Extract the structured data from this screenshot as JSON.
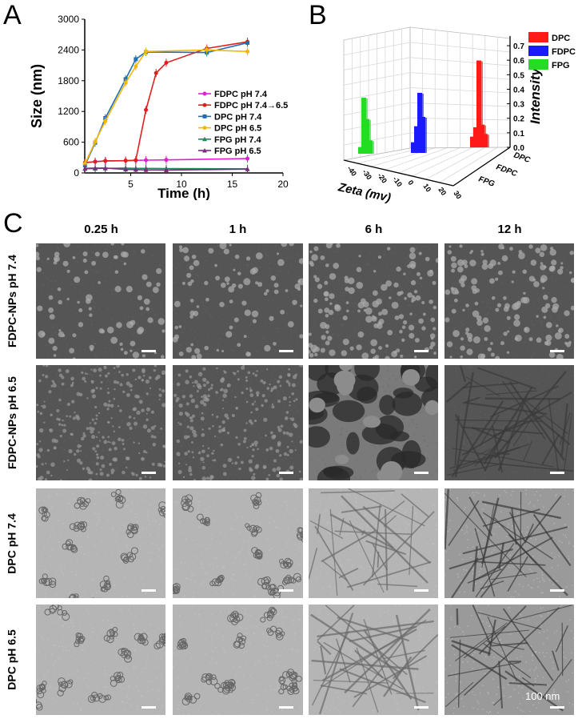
{
  "panels": {
    "a": {
      "letter": "A"
    },
    "b": {
      "letter": "B"
    },
    "c": {
      "letter": "C"
    }
  },
  "chart_data": [
    {
      "type": "line",
      "panel": "A",
      "xlabel": "Time (h)",
      "ylabel": "Size (nm)",
      "xlim": [
        0,
        20
      ],
      "ylim": [
        0,
        3000
      ],
      "xticks": [
        5,
        10,
        15,
        20
      ],
      "yticks": [
        0,
        600,
        1200,
        1800,
        2400,
        3000
      ],
      "legend_position": "right-middle",
      "series": [
        {
          "name": "FDPC pH 7.4",
          "color": "#e020d0",
          "marker": "circle",
          "x": [
            0.5,
            1.5,
            2.5,
            4.5,
            5.5,
            6.5,
            8.5,
            16.5
          ],
          "y": [
            200,
            220,
            235,
            240,
            245,
            250,
            255,
            280
          ]
        },
        {
          "name": "FDPC pH 7.4→6.5",
          "color": "#e02020",
          "marker": "circle",
          "x": [
            0.5,
            1.5,
            2.5,
            4.5,
            5.5,
            6.5,
            7.5,
            8.5,
            12.5,
            16.5
          ],
          "y": [
            200,
            220,
            235,
            240,
            250,
            1230,
            1950,
            2150,
            2430,
            2560
          ]
        },
        {
          "name": "DPC pH 7.4",
          "color": "#1f6fb4",
          "marker": "square",
          "x": [
            0.5,
            1.5,
            2.5,
            4.5,
            5.5,
            6.5,
            12.5,
            16.5
          ],
          "y": [
            150,
            590,
            1070,
            1830,
            2220,
            2360,
            2350,
            2540
          ]
        },
        {
          "name": "DPC pH 6.5",
          "color": "#f5b800",
          "marker": "circle",
          "x": [
            0.5,
            1.5,
            2.5,
            4.5,
            5.5,
            6.5,
            12.5,
            16.5
          ],
          "y": [
            180,
            610,
            1010,
            1760,
            2080,
            2370,
            2400,
            2370
          ]
        },
        {
          "name": "FPG pH 7.4",
          "color": "#1e8a5a",
          "marker": "triangle",
          "x": [
            0.5,
            1.5,
            2.5,
            4.5,
            5.5,
            6.5,
            8.5,
            16.5
          ],
          "y": [
            80,
            85,
            90,
            95,
            90,
            90,
            85,
            80
          ]
        },
        {
          "name": "FPG pH 6.5",
          "color": "#7a2d7a",
          "marker": "triangle",
          "x": [
            0.5,
            1.5,
            2.5,
            4.5,
            5.5,
            6.5,
            8.5,
            16.5
          ],
          "y": [
            90,
            95,
            95,
            70,
            65,
            60,
            55,
            75
          ]
        }
      ]
    },
    {
      "type": "bar3d",
      "panel": "B",
      "xlabel": "Zeta (mv)",
      "zlabel": "Intensity",
      "xticks": [
        "-40",
        "-30",
        "-20",
        "-10",
        "0",
        "10",
        "20",
        "30"
      ],
      "zticks": [
        "0.0",
        "0.1",
        "0.2",
        "0.3",
        "0.4",
        "0.5",
        "0.6",
        "0.7"
      ],
      "categories": [
        "DPC",
        "FDPC",
        "FPG"
      ],
      "series": [
        {
          "name": "DPC",
          "color": "#ff1a1a",
          "zeta": [
            18,
            20,
            22,
            24,
            26
          ],
          "intensity": [
            0.08,
            0.15,
            0.65,
            0.17,
            0.1
          ]
        },
        {
          "name": "FDPC",
          "color": "#1a1aff",
          "zeta": [
            -2,
            0,
            2,
            4
          ],
          "intensity": [
            0.08,
            0.2,
            0.45,
            0.27
          ]
        },
        {
          "name": "FPG",
          "color": "#22dd22",
          "zeta": [
            -30,
            -28,
            -26,
            -24
          ],
          "intensity": [
            0.05,
            0.42,
            0.26,
            0.1
          ]
        }
      ]
    }
  ],
  "tem_grid": {
    "columns": [
      "0.25 h",
      "1 h",
      "6 h",
      "12 h"
    ],
    "rows": [
      "FDPC-NPs pH 7.4",
      "FDPC-NPs pH 6.5",
      "DPC pH 7.4",
      "DPC pH 6.5"
    ],
    "scale_bar_label": "100 nm"
  }
}
